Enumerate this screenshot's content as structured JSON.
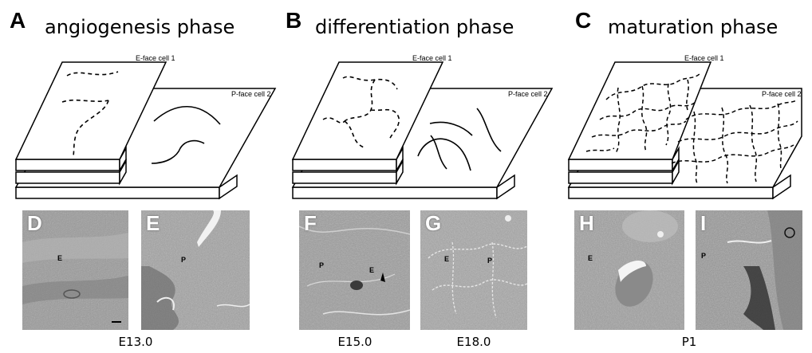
{
  "panels": [
    {
      "letter": "A",
      "title": "angiogenesis phase",
      "e_label": "E-face cell 1",
      "p_label": "P-face cell 2"
    },
    {
      "letter": "B",
      "title": "differentiation phase",
      "e_label": "E-face cell 1",
      "p_label": "P-face cell 2"
    },
    {
      "letter": "C",
      "title": "maturation phase",
      "e_label": "E-face cell 1",
      "p_label": "P-face cell 2"
    }
  ],
  "micrographs": [
    {
      "letter": "D",
      "marks": [
        "E"
      ]
    },
    {
      "letter": "E",
      "marks": [
        "P"
      ]
    },
    {
      "letter": "F",
      "marks": [
        "P",
        "E"
      ]
    },
    {
      "letter": "G",
      "marks": [
        "E",
        "P"
      ]
    },
    {
      "letter": "H",
      "marks": [
        "E"
      ]
    },
    {
      "letter": "I",
      "marks": [
        "P"
      ]
    }
  ],
  "ages": [
    "E13.0",
    "E15.0",
    "E18.0",
    "P1"
  ]
}
